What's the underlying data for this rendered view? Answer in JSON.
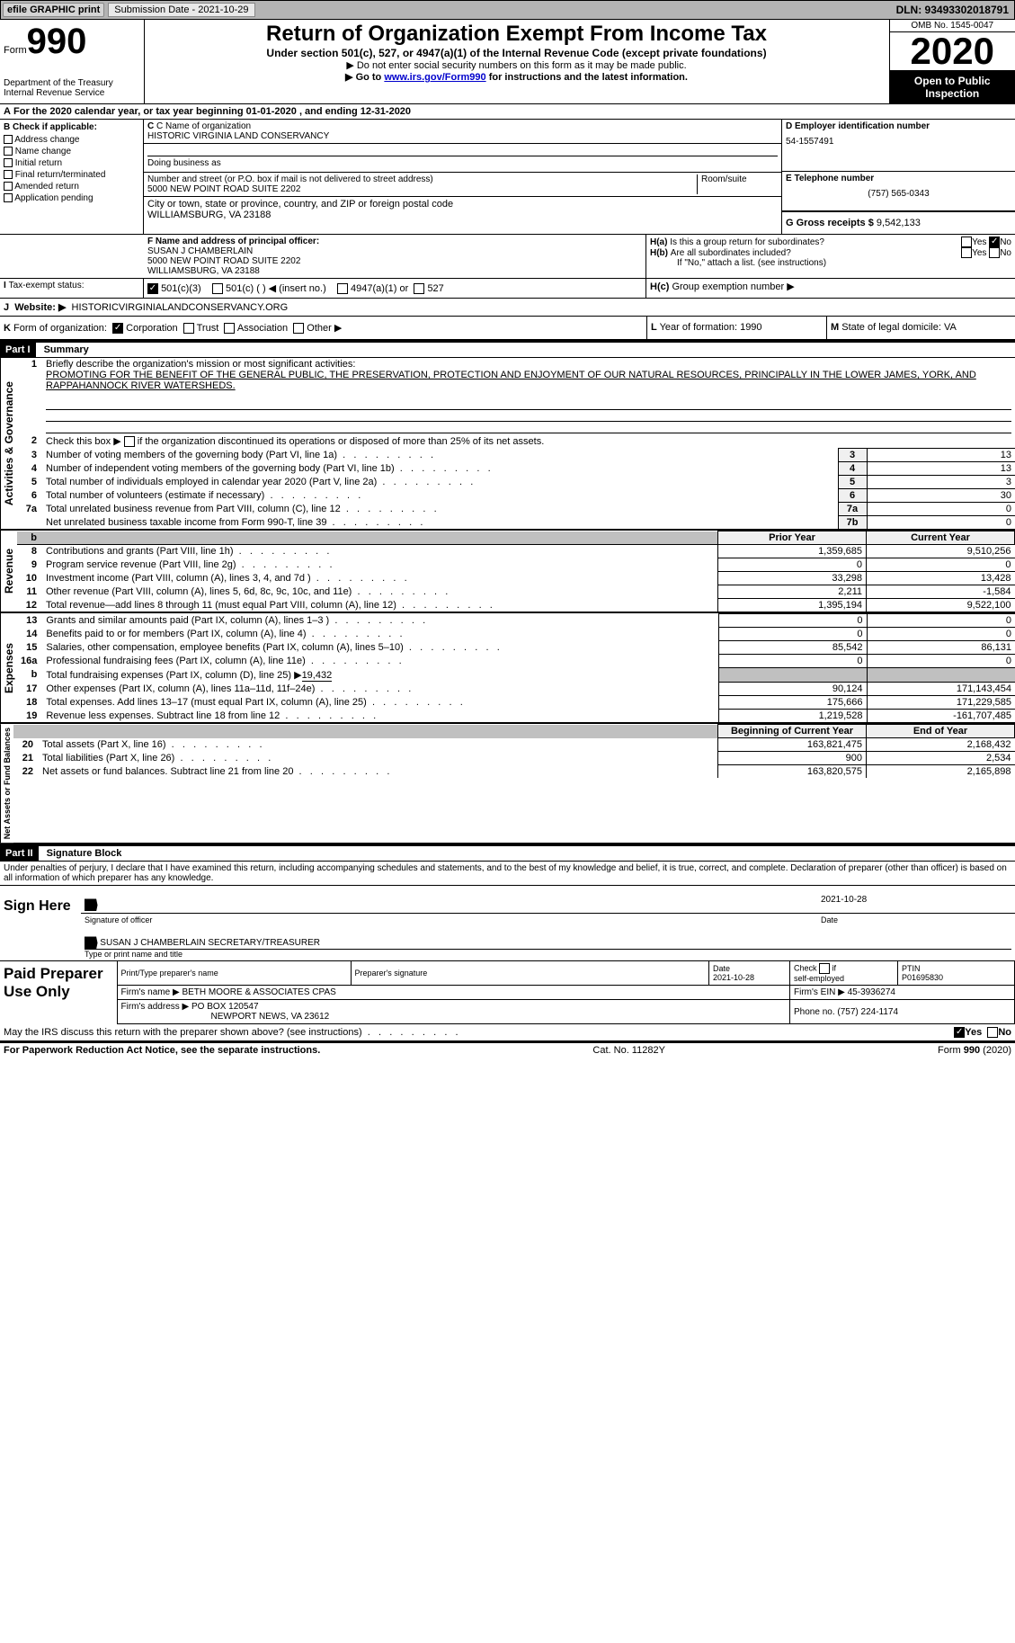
{
  "topbar": {
    "efile": "efile GRAPHIC print",
    "submission_label": "Submission Date - 2021-10-29",
    "dln": "DLN: 93493302018791"
  },
  "header": {
    "form_prefix": "Form",
    "form_number": "990",
    "dept": "Department of the Treasury\nInternal Revenue Service",
    "title": "Return of Organization Exempt From Income Tax",
    "subtitle": "Under section 501(c), 527, or 4947(a)(1) of the Internal Revenue Code (except private foundations)",
    "note1": "▶ Do not enter social security numbers on this form as it may be made public.",
    "note2_pre": "▶ Go to ",
    "note2_link": "www.irs.gov/Form990",
    "note2_post": " for instructions and the latest information.",
    "omb": "OMB No. 1545-0047",
    "year": "2020",
    "open": "Open to Public Inspection"
  },
  "period": {
    "line_a": "For the 2020 calendar year, or tax year beginning 01-01-2020   , and ending 12-31-2020"
  },
  "section_b": {
    "label": "B Check if applicable:",
    "items": [
      "Address change",
      "Name change",
      "Initial return",
      "Final return/terminated",
      "Amended return",
      "Application pending"
    ]
  },
  "section_c": {
    "name_label": "C Name of organization",
    "name": "HISTORIC VIRGINIA LAND CONSERVANCY",
    "dba_label": "Doing business as",
    "dba": "",
    "street_label": "Number and street (or P.O. box if mail is not delivered to street address)",
    "room_label": "Room/suite",
    "street": "5000 NEW POINT ROAD SUITE 2202",
    "city_label": "City or town, state or province, country, and ZIP or foreign postal code",
    "city": "WILLIAMSBURG, VA  23188"
  },
  "section_d": {
    "label": "D Employer identification number",
    "value": "54-1557491"
  },
  "section_e": {
    "label": "E Telephone number",
    "value": "(757) 565-0343"
  },
  "section_g": {
    "label": "G Gross receipts $",
    "value": "9,542,133"
  },
  "section_f": {
    "label": "F  Name and address of principal officer:",
    "name": "SUSAN J CHAMBERLAIN",
    "addr1": "5000 NEW POINT ROAD SUITE 2202",
    "addr2": "WILLIAMSBURG, VA  23188"
  },
  "section_h": {
    "ha1": "H(a)",
    "ha2": "Is this a group return for subordinates?",
    "hb1": "H(b)",
    "hb2": "Are all subordinates included?",
    "hb3": "If \"No,\" attach a list. (see instructions)",
    "hc1": "H(c)",
    "hc2": "Group exemption number ▶",
    "yes": "Yes",
    "no": "No"
  },
  "section_i": {
    "label": "I",
    "text": "Tax-exempt status:",
    "o1": "501(c)(3)",
    "o2": "501(c) (  ) ◀ (insert no.)",
    "o3": "4947(a)(1) or",
    "o4": "527"
  },
  "section_j": {
    "label": "J",
    "text": "Website: ▶",
    "value": "HISTORICVIRGINIALANDCONSERVANCY.ORG"
  },
  "section_k": {
    "label": "K",
    "text": "Form of organization:",
    "o1": "Corporation",
    "o2": "Trust",
    "o3": "Association",
    "o4": "Other ▶"
  },
  "section_l": {
    "label": "L",
    "text": "Year of formation: 1990"
  },
  "section_m": {
    "label": "M",
    "text": "State of legal domicile: VA"
  },
  "part1": {
    "label": "Part I",
    "title": "Summary",
    "line1_label": "Briefly describe the organization's mission or most significant activities:",
    "line1_text": "PROMOTING FOR THE BENEFIT OF THE GENERAL PUBLIC, THE PRESERVATION, PROTECTION AND ENJOYMENT OF OUR NATURAL RESOURCES, PRINCIPALLY IN THE LOWER JAMES, YORK, AND RAPPAHANNOCK RIVER WATERSHEDS.",
    "line2": "Check this box ▶        if the organization discontinued its operations or disposed of more than 25% of its net assets.",
    "vlabels": {
      "gov": "Activities & Governance",
      "rev": "Revenue",
      "exp": "Expenses",
      "net": "Net Assets or Fund Balances"
    },
    "gov_rows": [
      {
        "n": "3",
        "t": "Number of voting members of the governing body (Part VI, line 1a)",
        "c": "3",
        "v": "13"
      },
      {
        "n": "4",
        "t": "Number of independent voting members of the governing body (Part VI, line 1b)",
        "c": "4",
        "v": "13"
      },
      {
        "n": "5",
        "t": "Total number of individuals employed in calendar year 2020 (Part V, line 2a)",
        "c": "5",
        "v": "3"
      },
      {
        "n": "6",
        "t": "Total number of volunteers (estimate if necessary)",
        "c": "6",
        "v": "30"
      },
      {
        "n": "7a",
        "t": "Total unrelated business revenue from Part VIII, column (C), line 12",
        "c": "7a",
        "v": "0"
      },
      {
        "n": "",
        "t": "Net unrelated business taxable income from Form 990-T, line 39",
        "c": "7b",
        "v": "0"
      }
    ],
    "col_prior": "Prior Year",
    "col_current": "Current Year",
    "rev_rows": [
      {
        "n": "8",
        "t": "Contributions and grants (Part VIII, line 1h)",
        "p": "1,359,685",
        "c": "9,510,256"
      },
      {
        "n": "9",
        "t": "Program service revenue (Part VIII, line 2g)",
        "p": "0",
        "c": "0"
      },
      {
        "n": "10",
        "t": "Investment income (Part VIII, column (A), lines 3, 4, and 7d )",
        "p": "33,298",
        "c": "13,428"
      },
      {
        "n": "11",
        "t": "Other revenue (Part VIII, column (A), lines 5, 6d, 8c, 9c, 10c, and 11e)",
        "p": "2,211",
        "c": "-1,584"
      },
      {
        "n": "12",
        "t": "Total revenue—add lines 8 through 11 (must equal Part VIII, column (A), line 12)",
        "p": "1,395,194",
        "c": "9,522,100"
      }
    ],
    "exp_rows": [
      {
        "n": "13",
        "t": "Grants and similar amounts paid (Part IX, column (A), lines 1–3 )",
        "p": "0",
        "c": "0"
      },
      {
        "n": "14",
        "t": "Benefits paid to or for members (Part IX, column (A), line 4)",
        "p": "0",
        "c": "0"
      },
      {
        "n": "15",
        "t": "Salaries, other compensation, employee benefits (Part IX, column (A), lines 5–10)",
        "p": "85,542",
        "c": "86,131"
      },
      {
        "n": "16a",
        "t": "Professional fundraising fees (Part IX, column (A), line 11e)",
        "p": "0",
        "c": "0"
      }
    ],
    "line16b_pre": "Total fundraising expenses (Part IX, column (D), line 25) ▶",
    "line16b_val": "19,432",
    "exp_rows2": [
      {
        "n": "17",
        "t": "Other expenses (Part IX, column (A), lines 11a–11d, 11f–24e)",
        "p": "90,124",
        "c": "171,143,454"
      },
      {
        "n": "18",
        "t": "Total expenses. Add lines 13–17 (must equal Part IX, column (A), line 25)",
        "p": "175,666",
        "c": "171,229,585"
      },
      {
        "n": "19",
        "t": "Revenue less expenses. Subtract line 18 from line 12",
        "p": "1,219,528",
        "c": "-161,707,485"
      }
    ],
    "col_begin": "Beginning of Current Year",
    "col_end": "End of Year",
    "net_rows": [
      {
        "n": "20",
        "t": "Total assets (Part X, line 16)",
        "p": "163,821,475",
        "c": "2,168,432"
      },
      {
        "n": "21",
        "t": "Total liabilities (Part X, line 26)",
        "p": "900",
        "c": "2,534"
      },
      {
        "n": "22",
        "t": "Net assets or fund balances. Subtract line 21 from line 20",
        "p": "163,820,575",
        "c": "2,165,898"
      }
    ]
  },
  "part2": {
    "label": "Part II",
    "title": "Signature Block",
    "perjury": "Under penalties of perjury, I declare that I have examined this return, including accompanying schedules and statements, and to the best of my knowledge and belief, it is true, correct, and complete. Declaration of preparer (other than officer) is based on all information of which preparer has any knowledge.",
    "sign_here": "Sign Here",
    "sig_officer": "Signature of officer",
    "sig_date": "2021-10-28",
    "date_lbl": "Date",
    "officer_name": "SUSAN J CHAMBERLAIN  SECRETARY/TREASURER",
    "type_name": "Type or print name and title",
    "paid": "Paid Preparer Use Only",
    "prep_name_lbl": "Print/Type preparer's name",
    "prep_sig_lbl": "Preparer's signature",
    "prep_date_lbl": "Date",
    "prep_date": "2021-10-28",
    "self_emp": "Check         if self-employed",
    "ptin_lbl": "PTIN",
    "ptin": "P01695830",
    "firm_name_lbl": "Firm's name     ▶",
    "firm_name": "BETH MOORE & ASSOCIATES CPAS",
    "firm_ein_lbl": "Firm's EIN ▶",
    "firm_ein": "45-3936274",
    "firm_addr_lbl": "Firm's address ▶",
    "firm_addr1": "PO BOX 120547",
    "firm_addr2": "NEWPORT NEWS, VA  23612",
    "phone_lbl": "Phone no.",
    "phone": "(757) 224-1174",
    "discuss": "May the IRS discuss this return with the preparer shown above? (see instructions)",
    "yes": "Yes",
    "no": "No"
  },
  "footer": {
    "left": "For Paperwork Reduction Act Notice, see the separate instructions.",
    "mid": "Cat. No. 11282Y",
    "right": "Form 990 (2020)"
  }
}
